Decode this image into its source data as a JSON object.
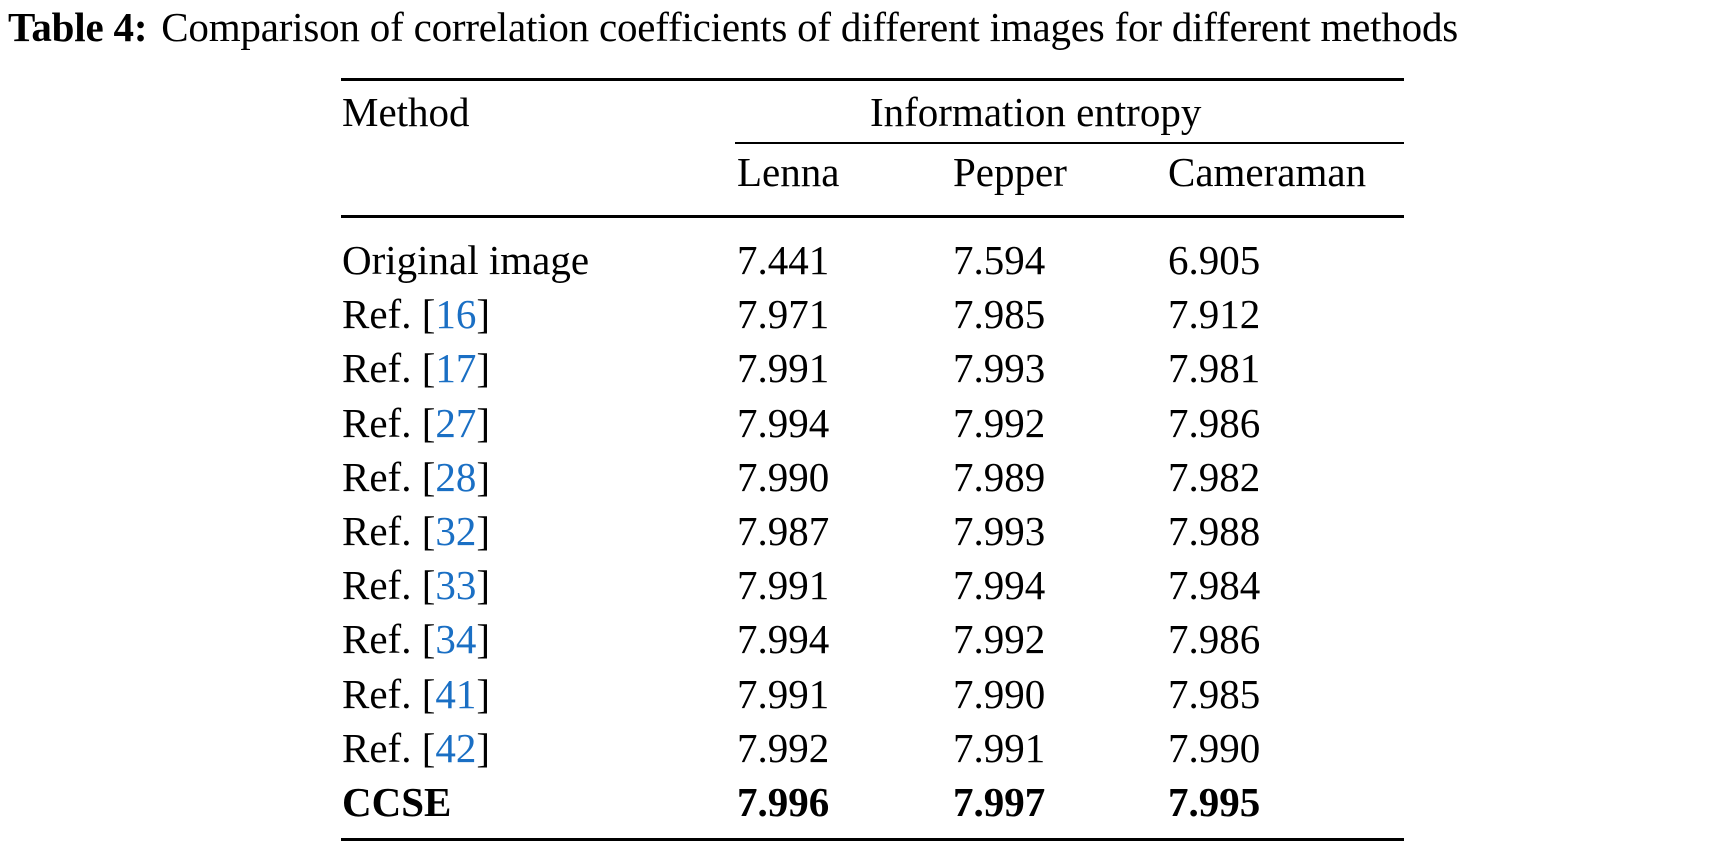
{
  "caption": {
    "label": "Table 4:",
    "text": "Comparison of correlation coefficients of different images for different methods"
  },
  "table": {
    "header": {
      "method": "Method",
      "group": "Information entropy",
      "columns": [
        "Lenna",
        "Pepper",
        "Cameraman"
      ]
    },
    "rows": [
      {
        "prefix": "Original image",
        "ref": "",
        "suffix": "",
        "values": [
          "7.441",
          "7.594",
          "6.905"
        ],
        "bold": false
      },
      {
        "prefix": "Ref. [",
        "ref": "16",
        "suffix": "]",
        "values": [
          "7.971",
          "7.985",
          "7.912"
        ],
        "bold": false
      },
      {
        "prefix": "Ref. [",
        "ref": "17",
        "suffix": "]",
        "values": [
          "7.991",
          "7.993",
          "7.981"
        ],
        "bold": false
      },
      {
        "prefix": "Ref. [",
        "ref": "27",
        "suffix": "]",
        "values": [
          "7.994",
          "7.992",
          "7.986"
        ],
        "bold": false
      },
      {
        "prefix": "Ref. [",
        "ref": "28",
        "suffix": "]",
        "values": [
          "7.990",
          "7.989",
          "7.982"
        ],
        "bold": false
      },
      {
        "prefix": "Ref. [",
        "ref": "32",
        "suffix": "]",
        "values": [
          "7.987",
          "7.993",
          "7.988"
        ],
        "bold": false
      },
      {
        "prefix": "Ref. [",
        "ref": "33",
        "suffix": "]",
        "values": [
          "7.991",
          "7.994",
          "7.984"
        ],
        "bold": false
      },
      {
        "prefix": "Ref. [",
        "ref": "34",
        "suffix": "]",
        "values": [
          "7.994",
          "7.992",
          "7.986"
        ],
        "bold": false
      },
      {
        "prefix": "Ref. [",
        "ref": "41",
        "suffix": "]",
        "values": [
          "7.991",
          "7.990",
          "7.985"
        ],
        "bold": false
      },
      {
        "prefix": "Ref. [",
        "ref": "42",
        "suffix": "]",
        "values": [
          "7.992",
          "7.991",
          "7.990"
        ],
        "bold": false
      },
      {
        "prefix": "CCSE",
        "ref": "",
        "suffix": "",
        "values": [
          "7.996",
          "7.997",
          "7.995"
        ],
        "bold": true
      }
    ]
  },
  "colors": {
    "reference_link": "#1a6fc4",
    "text": "#000000"
  }
}
